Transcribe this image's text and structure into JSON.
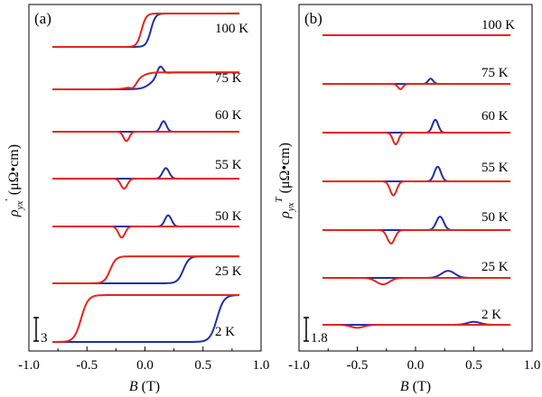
{
  "chart_data": [
    {
      "type": "line",
      "panel_label": "(a)",
      "ylabel": "ρ′yx (μΩ•cm)",
      "xlabel": "B (T)",
      "xlim": [
        -1.0,
        1.0
      ],
      "xticks": [
        "-1.0",
        "-0.5",
        "0.0",
        "0.5",
        "1.0"
      ],
      "scale_bar_label": "3",
      "series_colors": {
        "down_sweep": "#1f2fa8",
        "up_sweep": "#e8241c"
      },
      "curves": [
        {
          "label": "100 K",
          "type": "step",
          "lo": 0.0,
          "hi": 5.7,
          "xc_up": -0.03,
          "xc_dn": 0.05,
          "w": 0.02
        },
        {
          "label": "75 K",
          "type": "step_peak",
          "lo": 0.0,
          "hi": 2.9,
          "xc_up": -0.07,
          "xc_dn": 0.07,
          "w": 0.04,
          "peak_dn": [
            0.13,
            1.5
          ],
          "dip_up": [
            -0.1,
            -0.6
          ]
        },
        {
          "label": "60 K",
          "type": "peaks",
          "lo": 0.0,
          "hi": 0.0,
          "peak_dn": [
            0.16,
            1.8
          ],
          "dip_up": [
            -0.16,
            -1.6
          ],
          "pw": 0.035
        },
        {
          "label": "55 K",
          "type": "peaks",
          "lo": 0.0,
          "hi": 0.0,
          "peak_dn": [
            0.18,
            1.8
          ],
          "dip_up": [
            -0.18,
            -1.7
          ],
          "pw": 0.04
        },
        {
          "label": "50 K",
          "type": "peaks",
          "lo": 0.0,
          "hi": 0.0,
          "peak_dn": [
            0.2,
            1.9
          ],
          "dip_up": [
            -0.2,
            -1.9
          ],
          "pw": 0.04
        },
        {
          "label": "25 K",
          "type": "loop",
          "lo": 0.0,
          "hi": 4.6,
          "xc_up": -0.3,
          "xc_dn": 0.33,
          "w": 0.025
        },
        {
          "label": "2 K",
          "type": "loop",
          "lo": 0.0,
          "hi": 8.0,
          "xc_up": -0.55,
          "xc_dn": 0.62,
          "w": 0.03
        }
      ]
    },
    {
      "type": "line",
      "panel_label": "(b)",
      "ylabel": "ρTyx (μΩ•cm)",
      "xlabel": "B (T)",
      "xlim": [
        -1.0,
        1.0
      ],
      "xticks": [
        "-1.0",
        "-0.5",
        "0.0",
        "0.5",
        "1.0"
      ],
      "scale_bar_label": "1.8",
      "series_colors": {
        "down_sweep": "#1f2fa8",
        "up_sweep": "#e8241c"
      },
      "curves": [
        {
          "label": "100 K",
          "peak_dn": [
            0.0,
            0.0
          ],
          "dip_up": [
            0.0,
            0.0
          ],
          "pw": 0.04
        },
        {
          "label": "75 K",
          "peak_dn": [
            0.13,
            0.9
          ],
          "dip_up": [
            -0.13,
            -0.9
          ],
          "pw": 0.03
        },
        {
          "label": "60 K",
          "peak_dn": [
            0.17,
            2.2
          ],
          "dip_up": [
            -0.17,
            -2.0
          ],
          "pw": 0.035
        },
        {
          "label": "55 K",
          "peak_dn": [
            0.19,
            2.5
          ],
          "dip_up": [
            -0.19,
            -2.4
          ],
          "pw": 0.04
        },
        {
          "label": "50 K",
          "peak_dn": [
            0.21,
            2.3
          ],
          "dip_up": [
            -0.21,
            -2.3
          ],
          "pw": 0.045
        },
        {
          "label": "25 K",
          "peak_dn": [
            0.28,
            1.2
          ],
          "dip_up": [
            -0.28,
            -1.1
          ],
          "pw": 0.08
        },
        {
          "label": "2 K",
          "peak_dn": [
            0.5,
            0.5
          ],
          "dip_up": [
            -0.5,
            -0.5
          ],
          "pw": 0.08
        }
      ]
    }
  ]
}
